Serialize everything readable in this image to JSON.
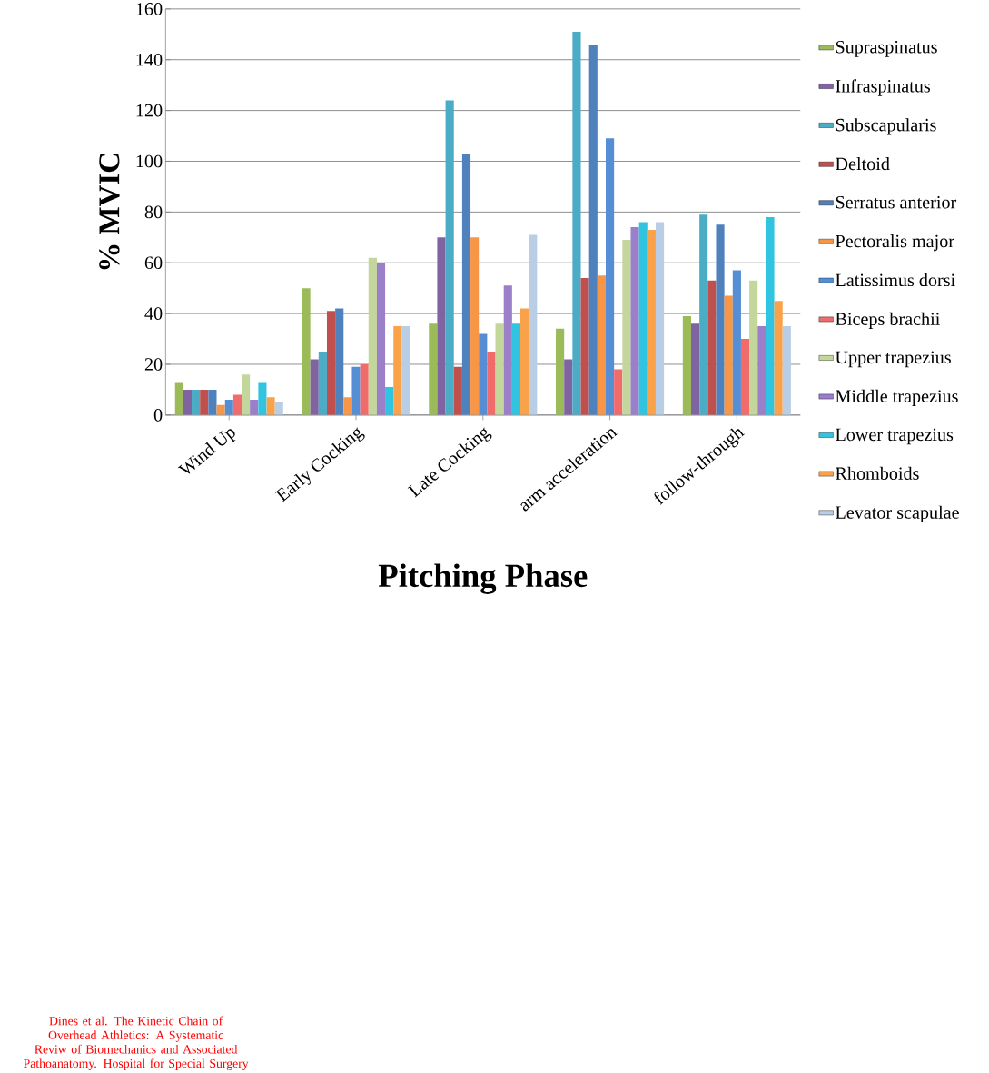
{
  "chart_data": {
    "type": "bar",
    "xlabel": "Pitching Phase",
    "ylabel": "% MVIC",
    "categories": [
      "Wind Up",
      "Early Cocking",
      "Late Cocking",
      "arm acceleration",
      "follow-through"
    ],
    "ylim": [
      0,
      160
    ],
    "yticks": [
      0,
      20,
      40,
      60,
      80,
      100,
      120,
      140,
      160
    ],
    "grid": "y",
    "legend": "right",
    "annotations": [
      "Dines et al. The Kinetic Chain of Overhead Athletics: A Systematic Reviw of Biomechanics and Associated Pathoanatomy. Hospital for Special Surgery"
    ],
    "series": [
      {
        "name": "Supraspinatus",
        "color": "#9bbb59",
        "values": [
          13,
          50,
          36,
          34,
          39
        ]
      },
      {
        "name": "Infraspinatus",
        "color": "#8064a2",
        "values": [
          10,
          22,
          70,
          22,
          36
        ]
      },
      {
        "name": "Subscapularis",
        "color": "#4bacc6",
        "values": [
          10,
          25,
          124,
          151,
          79
        ]
      },
      {
        "name": "Deltoid",
        "color": "#c0504d",
        "values": [
          10,
          41,
          19,
          54,
          53
        ]
      },
      {
        "name": "Serratus anterior",
        "color": "#4f81bd",
        "values": [
          10,
          42,
          103,
          146,
          75
        ]
      },
      {
        "name": "Pectoralis major",
        "color": "#f79646",
        "values": [
          4,
          7,
          70,
          55,
          47
        ]
      },
      {
        "name": "Latissimus dorsi",
        "color": "#558ed5",
        "values": [
          6,
          19,
          32,
          109,
          57
        ]
      },
      {
        "name": "Biceps brachii",
        "color": "#f26b6b",
        "values": [
          8,
          20,
          25,
          18,
          30
        ]
      },
      {
        "name": "Upper trapezius",
        "color": "#c3d69b",
        "values": [
          16,
          62,
          36,
          69,
          53
        ]
      },
      {
        "name": "Middle trapezius",
        "color": "#9b7fc9",
        "values": [
          6,
          60,
          51,
          74,
          35
        ]
      },
      {
        "name": "Lower trapezius",
        "color": "#31c4e0",
        "values": [
          13,
          11,
          36,
          76,
          78
        ]
      },
      {
        "name": "Rhomboids",
        "color": "#f9a24a",
        "values": [
          7,
          35,
          42,
          73,
          45
        ]
      },
      {
        "name": "Levator scapulae",
        "color": "#b9cde5",
        "values": [
          5,
          35,
          71,
          76,
          35
        ]
      }
    ]
  }
}
